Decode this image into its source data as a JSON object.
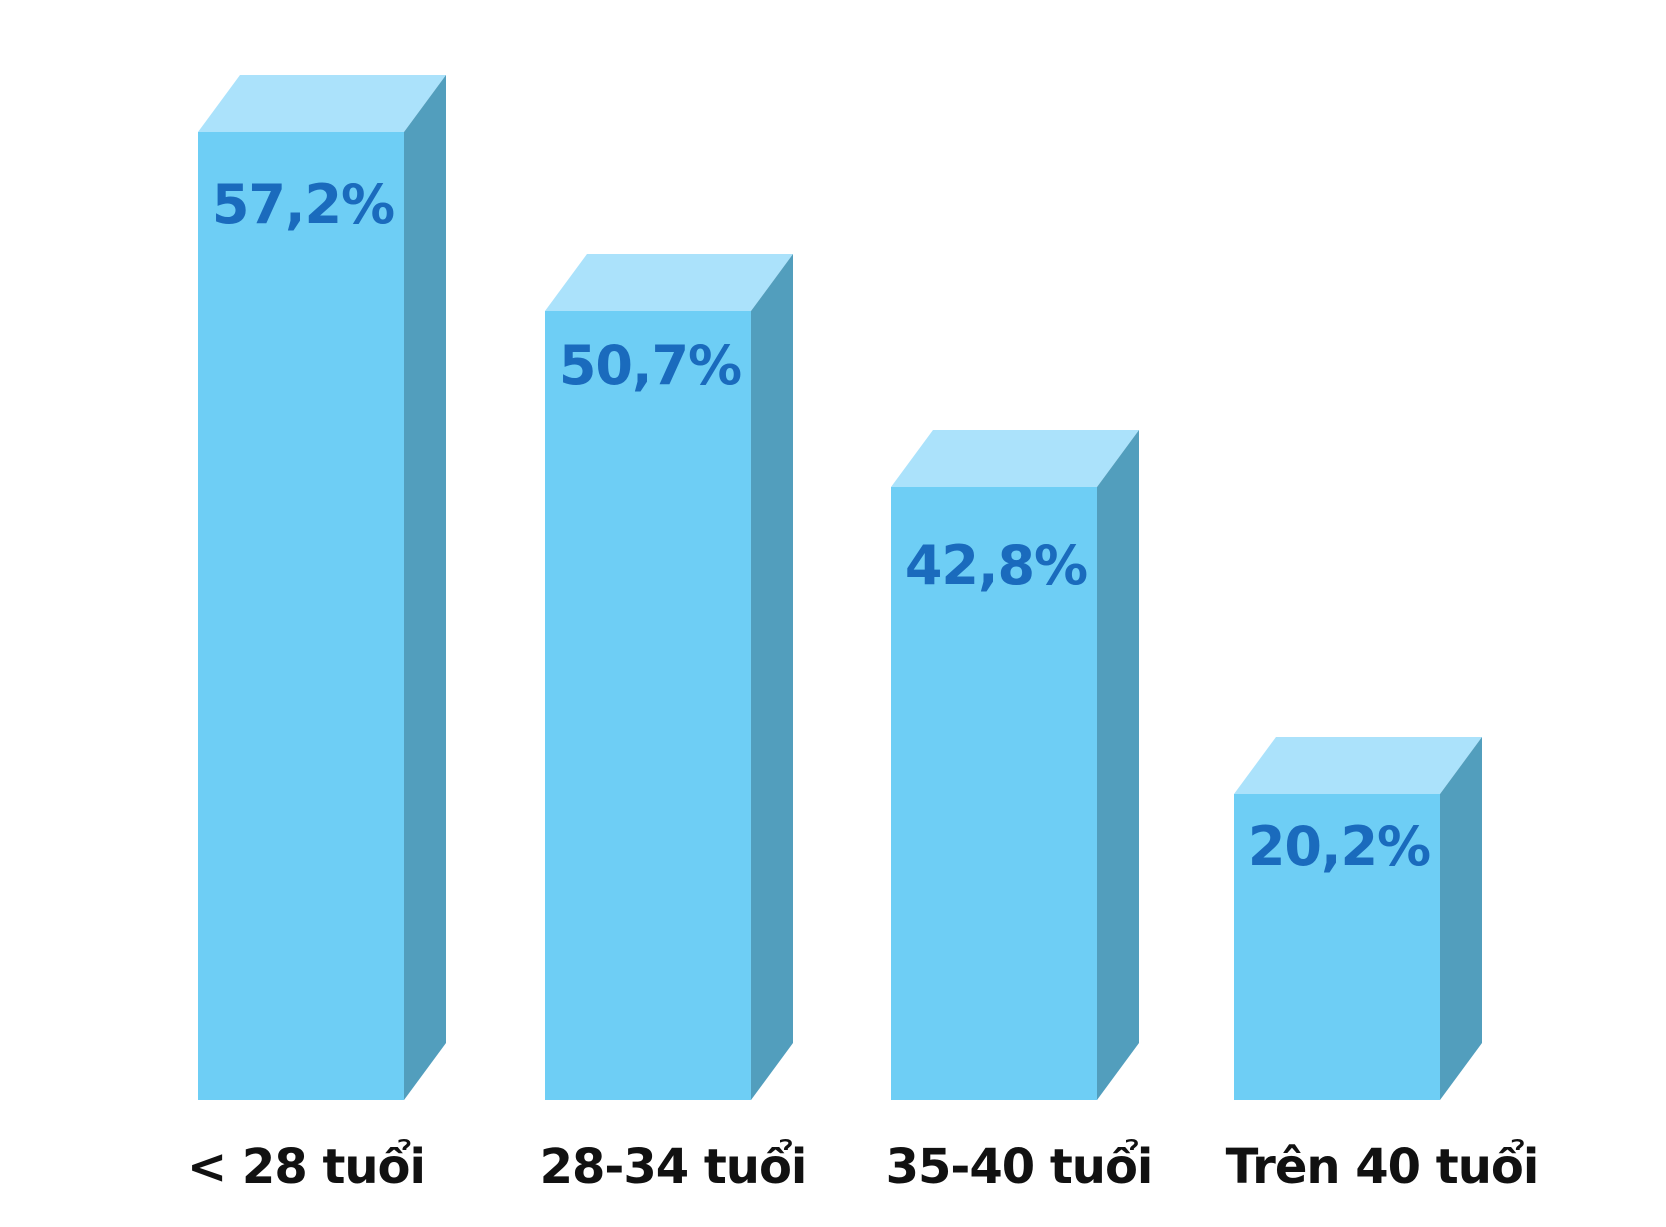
{
  "chart_data": {
    "type": "bar",
    "style": "3d",
    "categories": [
      "< 28 tuổi",
      "28-34 tuổi",
      "35-40 tuổi",
      "Trên 40 tuổi"
    ],
    "values": [
      57.2,
      50.7,
      42.8,
      20.2
    ],
    "value_labels": [
      "57,2%",
      "50,7%",
      "42,8%",
      "20,2%"
    ],
    "title": "",
    "xlabel": "",
    "ylabel": "",
    "grid": false,
    "colors": {
      "front": "#6ecef5",
      "top": "#abe2fb",
      "side": "#529ebd",
      "value_text": "#1a6bbd",
      "category_text": "#111111"
    }
  }
}
